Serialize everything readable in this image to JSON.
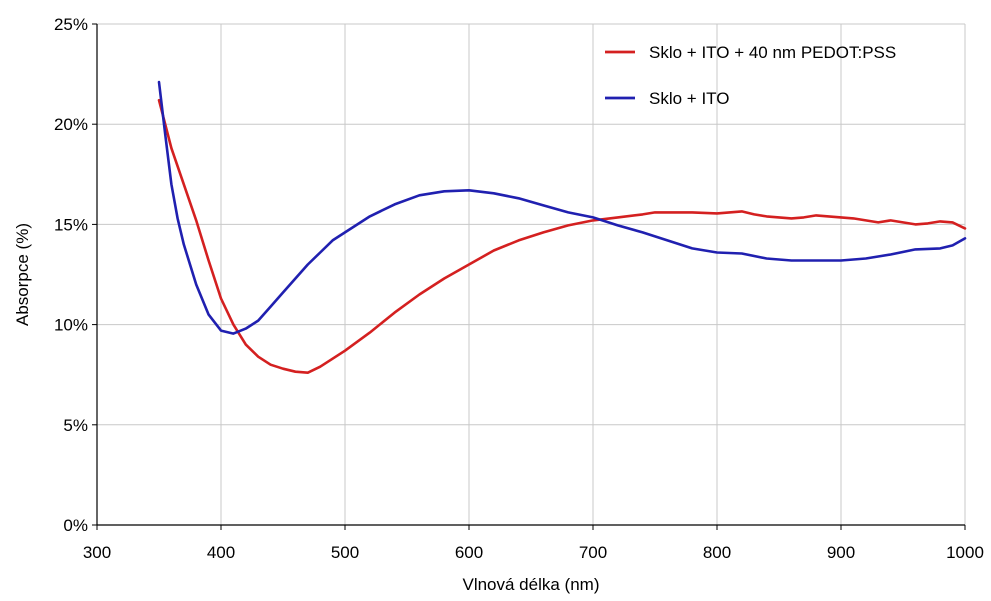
{
  "chart_data": {
    "type": "line",
    "title": "",
    "xlabel": "Vlnová délka (nm)",
    "ylabel": "Absorpce (%)",
    "xlim": [
      300,
      1000
    ],
    "ylim": [
      0,
      25
    ],
    "x_ticks": [
      300,
      400,
      500,
      600,
      700,
      800,
      900,
      1000
    ],
    "x_tick_labels": [
      "300",
      "400",
      "500",
      "600",
      "700",
      "800",
      "900",
      "1000"
    ],
    "y_ticks": [
      0,
      5,
      10,
      15,
      20,
      25
    ],
    "y_tick_labels": [
      "0%",
      "5%",
      "10%",
      "15%",
      "20%",
      "25%"
    ],
    "grid": true,
    "legend_position": "top-right",
    "series": [
      {
        "name": "Sklo + ITO + 40 nm PEDOT:PSS",
        "color": "#d42020",
        "x": [
          350,
          355,
          360,
          370,
          380,
          390,
          400,
          410,
          420,
          430,
          440,
          450,
          460,
          470,
          480,
          490,
          500,
          520,
          540,
          560,
          580,
          600,
          620,
          640,
          660,
          680,
          700,
          720,
          740,
          750,
          760,
          780,
          800,
          810,
          820,
          830,
          840,
          850,
          860,
          870,
          880,
          890,
          900,
          910,
          920,
          930,
          940,
          950,
          960,
          970,
          980,
          990,
          1000
        ],
        "y": [
          21.2,
          20.0,
          18.8,
          17.0,
          15.2,
          13.2,
          11.3,
          10.0,
          9.0,
          8.4,
          8.0,
          7.8,
          7.65,
          7.6,
          7.9,
          8.3,
          8.7,
          9.6,
          10.6,
          11.5,
          12.3,
          13.0,
          13.7,
          14.2,
          14.6,
          14.95,
          15.2,
          15.35,
          15.5,
          15.6,
          15.6,
          15.6,
          15.55,
          15.6,
          15.65,
          15.5,
          15.4,
          15.35,
          15.3,
          15.35,
          15.45,
          15.4,
          15.35,
          15.3,
          15.2,
          15.1,
          15.2,
          15.1,
          15.0,
          15.05,
          15.15,
          15.1,
          14.8
        ]
      },
      {
        "name": "Sklo + ITO",
        "color": "#2020b0",
        "x": [
          350,
          355,
          360,
          365,
          370,
          380,
          390,
          400,
          410,
          420,
          430,
          440,
          450,
          460,
          470,
          480,
          490,
          500,
          520,
          540,
          560,
          580,
          600,
          620,
          640,
          660,
          680,
          700,
          720,
          740,
          760,
          780,
          800,
          820,
          840,
          860,
          880,
          900,
          920,
          940,
          960,
          980,
          990,
          1000
        ],
        "y": [
          22.1,
          19.5,
          17.0,
          15.3,
          14.0,
          12.0,
          10.5,
          9.7,
          9.55,
          9.8,
          10.2,
          10.9,
          11.6,
          12.3,
          13.0,
          13.6,
          14.2,
          14.6,
          15.4,
          16.0,
          16.45,
          16.65,
          16.7,
          16.55,
          16.3,
          15.95,
          15.6,
          15.35,
          14.95,
          14.6,
          14.2,
          13.8,
          13.6,
          13.55,
          13.3,
          13.2,
          13.2,
          13.2,
          13.3,
          13.5,
          13.75,
          13.8,
          13.95,
          14.3
        ]
      }
    ]
  }
}
